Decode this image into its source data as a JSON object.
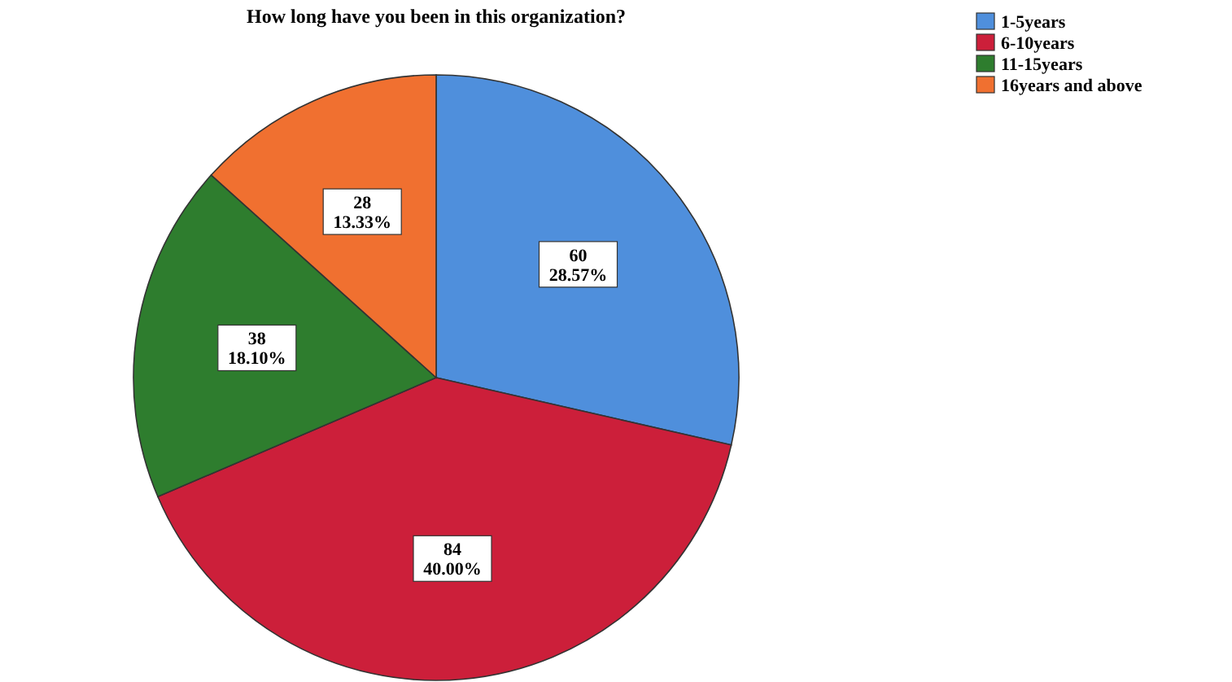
{
  "chart_data": {
    "type": "pie",
    "title": "How long have you been in this organization?",
    "categories": [
      "1-5years",
      "6-10years",
      "11-15years",
      "16years and above"
    ],
    "values": [
      60,
      84,
      38,
      28
    ],
    "value_labels": [
      "60\n28.57%",
      "84\n40.00%",
      "38\n18.10%",
      "28\n13.33%"
    ],
    "colors": [
      "#4f8fdc",
      "#cc1f3a",
      "#2e7d2e",
      "#f07030"
    ],
    "legend": "top right"
  }
}
